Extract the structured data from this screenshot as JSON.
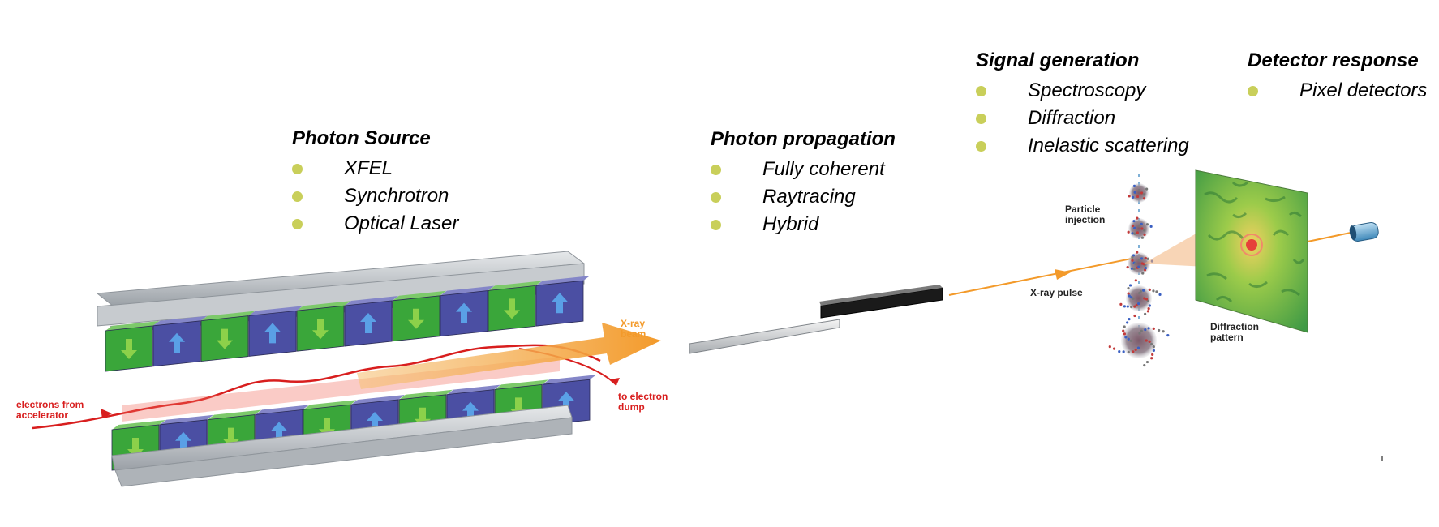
{
  "blocks": {
    "photon_source": {
      "title": "Photon Source",
      "items": [
        "XFEL",
        "Synchrotron",
        "Optical Laser"
      ]
    },
    "photon_propagation": {
      "title": "Photon propagation",
      "items": [
        "Fully coherent",
        "Raytracing",
        "Hybrid"
      ]
    },
    "signal_generation": {
      "title": "Signal generation",
      "items": [
        "Spectroscopy",
        "Diffraction",
        "Inelastic scattering"
      ]
    },
    "detector_response": {
      "title": "Detector response",
      "items": [
        "Pixel detectors"
      ]
    }
  },
  "undulator": {
    "xray_beam": [
      "X-ray",
      "beam"
    ],
    "electrons": [
      "electrons from",
      "accelerator"
    ],
    "dump": [
      "to electron",
      "dump"
    ]
  },
  "experiment": {
    "particle_injection": [
      "Particle",
      "injection"
    ],
    "xray_pulse": "X-ray pulse",
    "diffraction_pattern": [
      "Diffraction",
      "pattern"
    ]
  },
  "colors": {
    "bullet": "#c9cf5a",
    "beam": "#f39a2a",
    "electron": "#d81e1e",
    "magnet_green": "#3aa63a",
    "magnet_blue": "#4b4fa3",
    "rail": "#b9bdc2"
  }
}
